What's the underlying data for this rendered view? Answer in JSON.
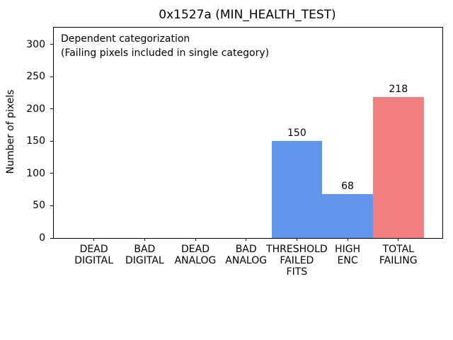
{
  "chart_data": {
    "type": "bar",
    "title": "0x1527a (MIN_HEALTH_TEST)",
    "xlabel": "",
    "ylabel": "Number of pixels",
    "categories": [
      [
        "DEAD",
        "DIGITAL"
      ],
      [
        "BAD",
        "DIGITAL"
      ],
      [
        "DEAD",
        "ANALOG"
      ],
      [
        "BAD",
        "ANALOG"
      ],
      [
        "THRESHOLD",
        "FAILED",
        "FITS"
      ],
      [
        "HIGH",
        "ENC"
      ],
      [
        "TOTAL",
        "FAILING"
      ]
    ],
    "values": [
      0,
      0,
      0,
      0,
      150,
      68,
      218
    ],
    "bar_colors": [
      "#6495ed",
      "#6495ed",
      "#6495ed",
      "#6495ed",
      "#6495ed",
      "#6495ed",
      "#f08080"
    ],
    "bar_width": 1.0,
    "yticks": [
      0,
      50,
      100,
      150,
      200,
      250,
      300
    ],
    "ylim": [
      0,
      326
    ],
    "grid": false,
    "legend": null,
    "annotations": [
      "Dependent categorization",
      "(Failing pixels included in single category)"
    ]
  },
  "colors": {
    "bar_blue": "#6495ed",
    "bar_red": "#f08080",
    "axis": "#000000",
    "text": "#000000",
    "background": "#ffffff"
  }
}
